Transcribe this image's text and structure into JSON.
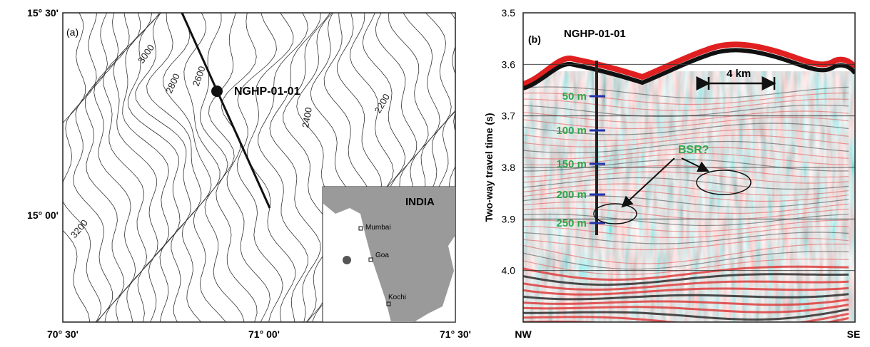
{
  "panel_a": {
    "label": "(a)",
    "lat_labels": [
      "15° 30'",
      "15° 00'"
    ],
    "lon_labels": [
      "70° 30'",
      "71° 00'",
      "71° 30'"
    ],
    "contour_labels": [
      "3000",
      "2800",
      "2600",
      "2400",
      "2200",
      "3200"
    ],
    "site": "NGHP-01-01",
    "inset": {
      "title": "INDIA",
      "cities": [
        "Mumbai",
        "Goa",
        "Kochi"
      ]
    }
  },
  "panel_b": {
    "label": "(b)",
    "site": "NGHP-01-01",
    "ylabel": "Two-way travel time (s)",
    "ylim": [
      3.5,
      4.1
    ],
    "yticks": [
      3.5,
      3.6,
      3.7,
      3.8,
      {
        "value": 4,
        "label": "4.0"
      },
      3.9
    ],
    "depth_labels": [
      "50 m",
      "100 m",
      "150 m",
      "200 m",
      "250 m"
    ],
    "scale_label": "4 km",
    "bsr_label": "BSR?",
    "left_label": "NW",
    "right_label": "SE"
  }
}
